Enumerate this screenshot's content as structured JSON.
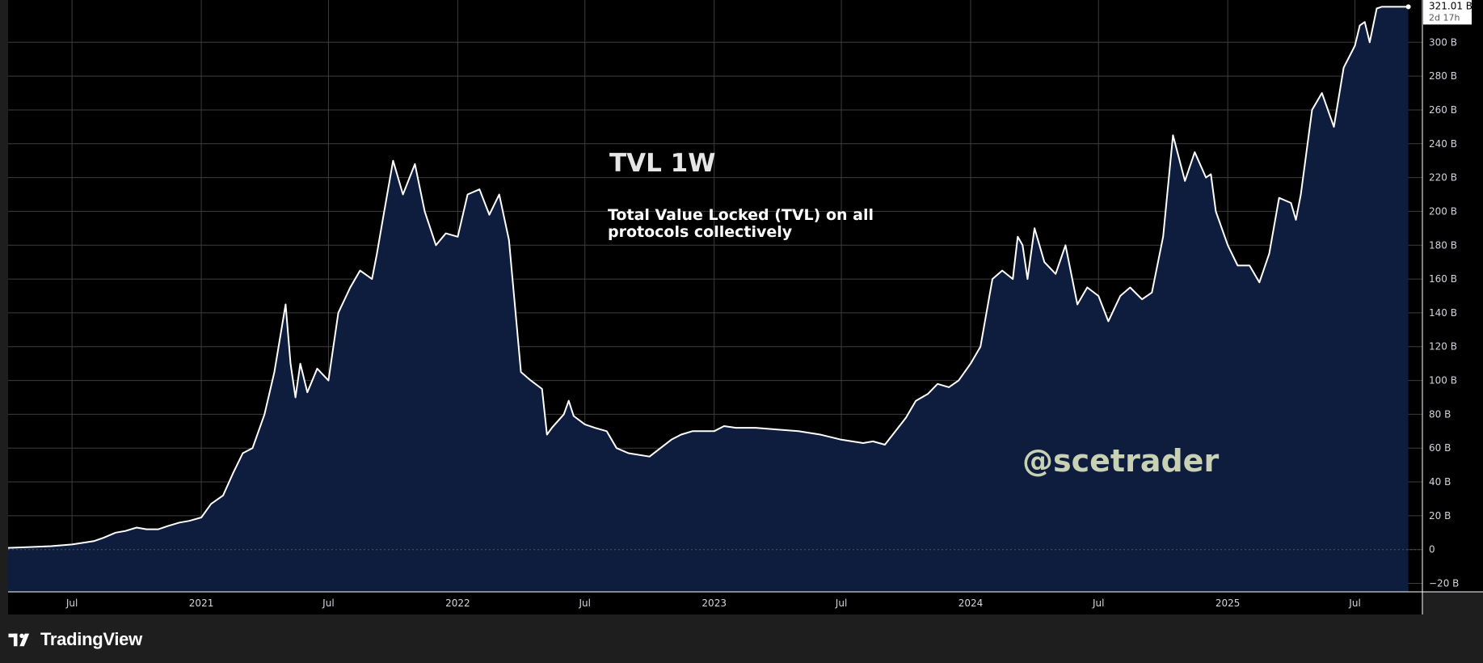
{
  "colors": {
    "plot_background": "#000000",
    "page_background": "#1e1e1e",
    "line": "#ffffff",
    "area_fill": "#0e1c3d",
    "grid": "#3d3d3d",
    "tick_text": "#d1d4dc",
    "watermark": "#c9d1b5"
  },
  "annotations": {
    "title": "TVL 1W",
    "subtitle": "Total Value Locked (TVL) on all protocols collectively",
    "watermark": "@scetrader"
  },
  "last_price": {
    "value": "321.01 B",
    "countdown": "2d 17h"
  },
  "branding": {
    "logo": "tradingview-logo-icon",
    "name": "TradingView"
  },
  "chart_data": {
    "type": "area",
    "title": "TVL 1W",
    "subtitle": "Total Value Locked (TVL) on all protocols collectively",
    "xlabel": "",
    "ylabel": "",
    "unit": "B",
    "grid": true,
    "xlim": [
      "2020-04-01",
      "2025-10-05"
    ],
    "ylim": [
      -25,
      325
    ],
    "x_ticks": [
      {
        "label": "Jul",
        "date": "2020-07-01"
      },
      {
        "label": "2021",
        "date": "2021-01-01"
      },
      {
        "label": "Jul",
        "date": "2021-07-01"
      },
      {
        "label": "2022",
        "date": "2022-01-01"
      },
      {
        "label": "Jul",
        "date": "2022-07-01"
      },
      {
        "label": "2023",
        "date": "2023-01-01"
      },
      {
        "label": "Jul",
        "date": "2023-07-01"
      },
      {
        "label": "2024",
        "date": "2024-01-01"
      },
      {
        "label": "Jul",
        "date": "2024-07-01"
      },
      {
        "label": "2025",
        "date": "2025-01-01"
      },
      {
        "label": "Jul",
        "date": "2025-07-01"
      }
    ],
    "y_ticks": [
      {
        "label": "300 B",
        "value": 300
      },
      {
        "label": "280 B",
        "value": 280
      },
      {
        "label": "260 B",
        "value": 260
      },
      {
        "label": "240 B",
        "value": 240
      },
      {
        "label": "220 B",
        "value": 220
      },
      {
        "label": "200 B",
        "value": 200
      },
      {
        "label": "180 B",
        "value": 180
      },
      {
        "label": "160 B",
        "value": 160
      },
      {
        "label": "140 B",
        "value": 140
      },
      {
        "label": "120 B",
        "value": 120
      },
      {
        "label": "100 B",
        "value": 100
      },
      {
        "label": "80 B",
        "value": 80
      },
      {
        "label": "60 B",
        "value": 60
      },
      {
        "label": "40 B",
        "value": 40
      },
      {
        "label": "20 B",
        "value": 20
      },
      {
        "label": "0",
        "value": 0
      },
      {
        "label": "−20 B",
        "value": -20
      }
    ],
    "series": [
      {
        "x": [
          "2020-04-01",
          "2020-05-01",
          "2020-06-01",
          "2020-07-01",
          "2020-08-01",
          "2020-08-15",
          "2020-09-01",
          "2020-09-15",
          "2020-10-01",
          "2020-10-15",
          "2020-11-01",
          "2020-11-15",
          "2020-12-01",
          "2020-12-15",
          "2021-01-01",
          "2021-01-15",
          "2021-02-01",
          "2021-02-15",
          "2021-03-01",
          "2021-03-15",
          "2021-04-01",
          "2021-04-15",
          "2021-05-01",
          "2021-05-08",
          "2021-05-15",
          "2021-05-22",
          "2021-06-01",
          "2021-06-15",
          "2021-07-01",
          "2021-07-15",
          "2021-08-01",
          "2021-08-15",
          "2021-09-01",
          "2021-09-08",
          "2021-09-15",
          "2021-10-01",
          "2021-10-15",
          "2021-11-01",
          "2021-11-15",
          "2021-12-01",
          "2021-12-15",
          "2022-01-01",
          "2022-01-15",
          "2022-02-01",
          "2022-02-15",
          "2022-03-01",
          "2022-03-15",
          "2022-04-01",
          "2022-04-15",
          "2022-05-01",
          "2022-05-08",
          "2022-05-15",
          "2022-06-01",
          "2022-06-08",
          "2022-06-15",
          "2022-07-01",
          "2022-07-15",
          "2022-08-01",
          "2022-08-15",
          "2022-09-01",
          "2022-10-01",
          "2022-11-01",
          "2022-11-15",
          "2022-12-01",
          "2023-01-01",
          "2023-01-15",
          "2023-02-01",
          "2023-03-01",
          "2023-04-01",
          "2023-05-01",
          "2023-06-01",
          "2023-07-01",
          "2023-08-01",
          "2023-08-15",
          "2023-09-01",
          "2023-10-01",
          "2023-10-15",
          "2023-11-01",
          "2023-11-15",
          "2023-12-01",
          "2023-12-15",
          "2024-01-01",
          "2024-01-15",
          "2024-02-01",
          "2024-02-15",
          "2024-03-01",
          "2024-03-08",
          "2024-03-15",
          "2024-03-22",
          "2024-04-01",
          "2024-04-15",
          "2024-05-01",
          "2024-05-15",
          "2024-06-01",
          "2024-06-15",
          "2024-07-01",
          "2024-07-15",
          "2024-08-01",
          "2024-08-15",
          "2024-09-01",
          "2024-09-15",
          "2024-10-01",
          "2024-10-15",
          "2024-11-01",
          "2024-11-15",
          "2024-12-01",
          "2024-12-08",
          "2024-12-15",
          "2025-01-01",
          "2025-01-15",
          "2025-02-01",
          "2025-02-15",
          "2025-03-01",
          "2025-03-15",
          "2025-04-01",
          "2025-04-08",
          "2025-04-15",
          "2025-05-01",
          "2025-05-15",
          "2025-06-01",
          "2025-06-15",
          "2025-07-01",
          "2025-07-08",
          "2025-07-15",
          "2025-07-22",
          "2025-08-01",
          "2025-08-08",
          "2025-08-15",
          "2025-08-22",
          "2025-09-01",
          "2025-09-08",
          "2025-09-15"
        ],
        "y": [
          1,
          1.5,
          2,
          3,
          5,
          7,
          10,
          11,
          13,
          12,
          12,
          14,
          16,
          17,
          19,
          27,
          32,
          45,
          57,
          60,
          80,
          105,
          145,
          110,
          90,
          110,
          93,
          107,
          100,
          140,
          155,
          165,
          160,
          175,
          192,
          230,
          210,
          228,
          200,
          180,
          187,
          185,
          210,
          213,
          198,
          210,
          183,
          105,
          100,
          95,
          68,
          72,
          80,
          88,
          79,
          74,
          72,
          70,
          60,
          57,
          55,
          65,
          68,
          70,
          70,
          73,
          72,
          72,
          71,
          70,
          68,
          65,
          63,
          64,
          62,
          78,
          88,
          92,
          98,
          96,
          100,
          110,
          120,
          160,
          165,
          160,
          185,
          180,
          160,
          190,
          170,
          163,
          180,
          145,
          155,
          150,
          135,
          150,
          155,
          148,
          152,
          185,
          245,
          218,
          235,
          220,
          222,
          200,
          180,
          168,
          168,
          158,
          175,
          208,
          205,
          195,
          210,
          260,
          270,
          250,
          285,
          298,
          310,
          312,
          300,
          320,
          321,
          321,
          321,
          321,
          321,
          321
        ],
        "note": "weekly TVL in billions, read from chart"
      }
    ],
    "last_value": 321.01
  }
}
